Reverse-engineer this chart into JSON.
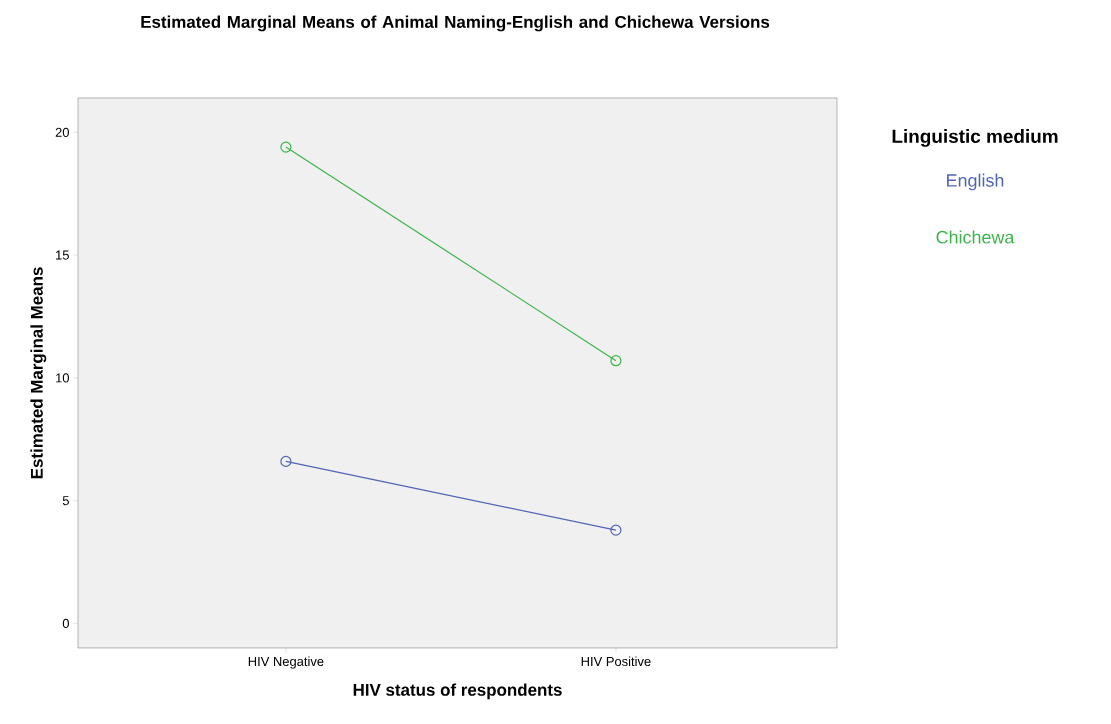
{
  "chart_data": {
    "type": "line",
    "title": "Estimated Marginal Means of Animal Naming-English and Chichewa Versions",
    "xlabel": "HIV status of respondents",
    "ylabel": "Estimated Marginal Means",
    "legend_title": "Linguistic medium",
    "categories": [
      "HIV Negative",
      "HIV Positive"
    ],
    "series": [
      {
        "name": "English",
        "color": "#5064b4",
        "values": [
          6.6,
          3.8
        ]
      },
      {
        "name": "Chichewa",
        "color": "#3cb44b",
        "values": [
          19.4,
          10.7
        ]
      }
    ],
    "ylim": [
      -1,
      21.4
    ],
    "yticks": [
      0,
      5,
      10,
      15,
      20
    ],
    "grid": false,
    "legend": "right",
    "marker": "circle",
    "line_style": "solid"
  }
}
